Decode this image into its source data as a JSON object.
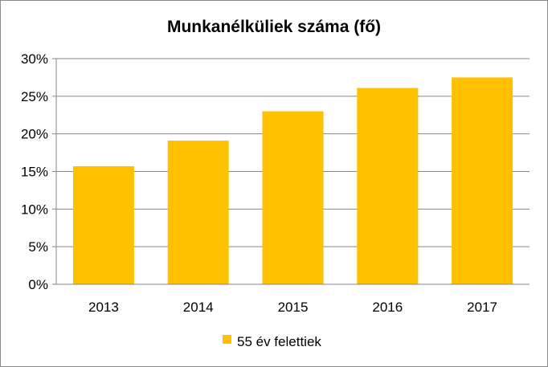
{
  "chart_data": {
    "type": "bar",
    "title": "Munkanélküliek száma (fő)",
    "categories": [
      "2013",
      "2014",
      "2015",
      "2016",
      "2017"
    ],
    "series": [
      {
        "name": "55 év felettiek",
        "values": [
          15.7,
          19.1,
          23.0,
          26.1,
          27.5
        ]
      }
    ],
    "ylim": [
      0,
      30
    ],
    "y_ticks": [
      0,
      5,
      10,
      15,
      20,
      25,
      30
    ],
    "y_tick_format": "percent",
    "grid": true,
    "legend_position": "bottom",
    "colors": {
      "bar": "#FFC000",
      "grid": "#868686",
      "axis": "#868686"
    }
  }
}
